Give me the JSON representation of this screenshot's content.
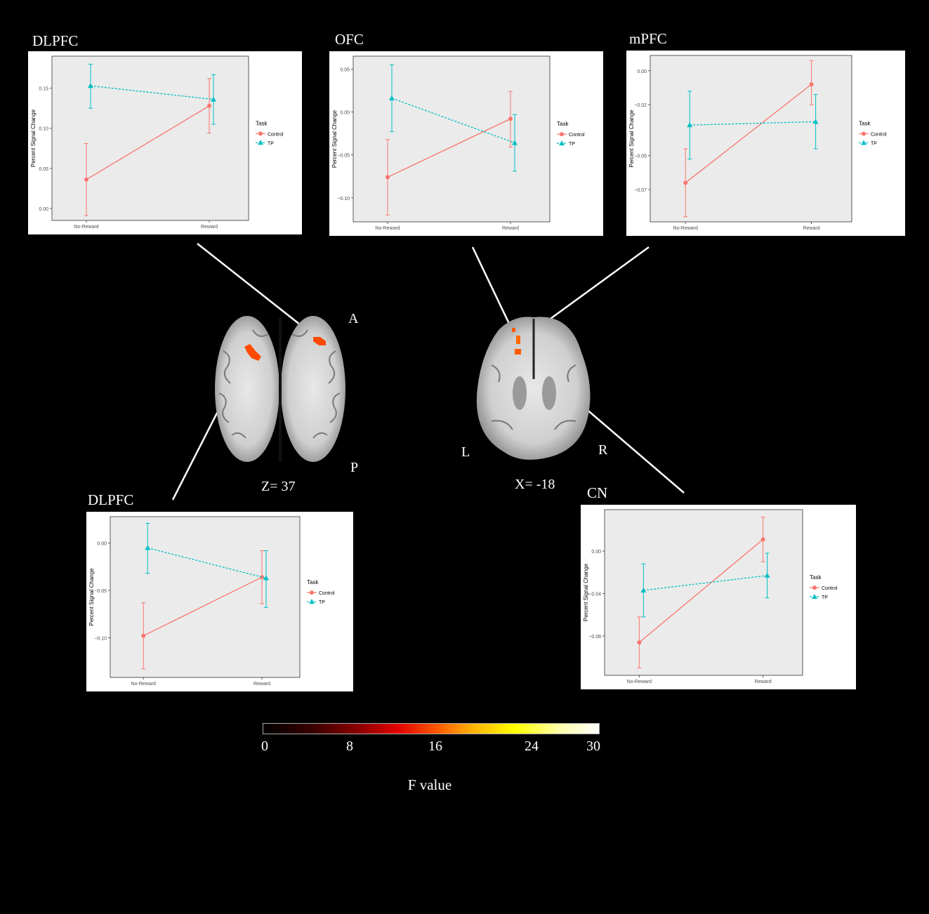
{
  "region_titles": {
    "dlpfc_top": "DLPFC",
    "ofc": "OFC",
    "mpfc": "mPFC",
    "dlpfc_bottom": "DLPFC",
    "cn": "CN"
  },
  "brain_labels": {
    "anterior": "A",
    "posterior": "P",
    "left": "L",
    "right": "R",
    "axial_coord": "Z=  37",
    "sagittal_coord": "X=  -18"
  },
  "colorbar": {
    "ticks": [
      "0",
      "8",
      "16",
      "24",
      "30"
    ],
    "title": "F value"
  },
  "colors": {
    "control": "#F8766D",
    "tp": "#00BFC4",
    "panel_bg": "#EBEBEB"
  },
  "chart_data": [
    {
      "id": "dlpfc_top",
      "type": "line",
      "title": "",
      "ylabel": "Percent Signal Change",
      "categories": [
        "No-Reward",
        "Reward"
      ],
      "ylim": [
        -0.015,
        0.19
      ],
      "yticks": [
        0.0,
        0.05,
        0.1,
        0.15
      ],
      "ytick_labels": [
        "0.00",
        "0.05",
        "0.10",
        "0.15"
      ],
      "legend_title": "Task",
      "series": [
        {
          "name": "Control",
          "values": [
            0.036,
            0.128
          ],
          "err_low": [
            -0.009,
            0.094
          ],
          "err_high": [
            0.081,
            0.162
          ]
        },
        {
          "name": "TP",
          "values": [
            0.153,
            0.136
          ],
          "err_low": [
            0.125,
            0.105
          ],
          "err_high": [
            0.18,
            0.167
          ]
        }
      ]
    },
    {
      "id": "ofc",
      "type": "line",
      "title": "",
      "ylabel": "Percent Signal Change",
      "categories": [
        "No-Reward",
        "Reward"
      ],
      "ylim": [
        -0.128,
        0.065
      ],
      "yticks": [
        -0.1,
        -0.05,
        0.0,
        0.05
      ],
      "ytick_labels": [
        "−0.10",
        "−0.05",
        "0.00",
        "0.05"
      ],
      "legend_title": "Task",
      "series": [
        {
          "name": "Control",
          "values": [
            -0.076,
            -0.008
          ],
          "err_low": [
            -0.12,
            -0.041
          ],
          "err_high": [
            -0.032,
            0.024
          ]
        },
        {
          "name": "TP",
          "values": [
            0.016,
            -0.036
          ],
          "err_low": [
            -0.023,
            -0.069
          ],
          "err_high": [
            0.055,
            -0.003
          ]
        }
      ]
    },
    {
      "id": "mpfc",
      "type": "line",
      "title": "",
      "ylabel": "Percent Signal Change",
      "categories": [
        "No-Reward",
        "Reward"
      ],
      "ylim": [
        -0.089,
        0.009
      ],
      "yticks": [
        -0.07,
        -0.05,
        -0.02,
        0.0
      ],
      "ytick_labels": [
        "−0.07",
        "−0.05",
        "−0.02",
        "0.00"
      ],
      "legend_title": "Task",
      "series": [
        {
          "name": "Control",
          "values": [
            -0.066,
            -0.008
          ],
          "err_low": [
            -0.086,
            -0.02
          ],
          "err_high": [
            -0.046,
            0.006
          ]
        },
        {
          "name": "TP",
          "values": [
            -0.032,
            -0.03
          ],
          "err_low": [
            -0.052,
            -0.046
          ],
          "err_high": [
            -0.012,
            -0.014
          ]
        }
      ]
    },
    {
      "id": "dlpfc_bottom",
      "type": "line",
      "title": "",
      "ylabel": "Percent Signal Change",
      "categories": [
        "No-Reward",
        "Reward"
      ],
      "ylim": [
        -0.142,
        0.028
      ],
      "yticks": [
        -0.1,
        -0.05,
        0.0
      ],
      "ytick_labels": [
        "−0.10",
        "−0.05",
        "0.00"
      ],
      "legend_title": "Task",
      "series": [
        {
          "name": "Control",
          "values": [
            -0.098,
            -0.036
          ],
          "err_low": [
            -0.133,
            -0.064
          ],
          "err_high": [
            -0.063,
            -0.008
          ]
        },
        {
          "name": "TP",
          "values": [
            -0.005,
            -0.037
          ],
          "err_low": [
            -0.032,
            -0.068
          ],
          "err_high": [
            0.021,
            -0.008
          ]
        }
      ]
    },
    {
      "id": "cn",
      "type": "line",
      "title": "",
      "ylabel": "Percent Signal Change",
      "categories": [
        "No-Reward",
        "Reward"
      ],
      "ylim": [
        -0.117,
        0.039
      ],
      "yticks": [
        -0.08,
        -0.04,
        0.0
      ],
      "ytick_labels": [
        "−0.08",
        "−0.04",
        "0.00"
      ],
      "legend_title": "Task",
      "series": [
        {
          "name": "Control",
          "values": [
            -0.086,
            0.011
          ],
          "err_low": [
            -0.11,
            -0.01
          ],
          "err_high": [
            -0.062,
            0.032
          ]
        },
        {
          "name": "TP",
          "values": [
            -0.037,
            -0.023
          ],
          "err_low": [
            -0.062,
            -0.044
          ],
          "err_high": [
            -0.012,
            -0.002
          ]
        }
      ]
    }
  ]
}
